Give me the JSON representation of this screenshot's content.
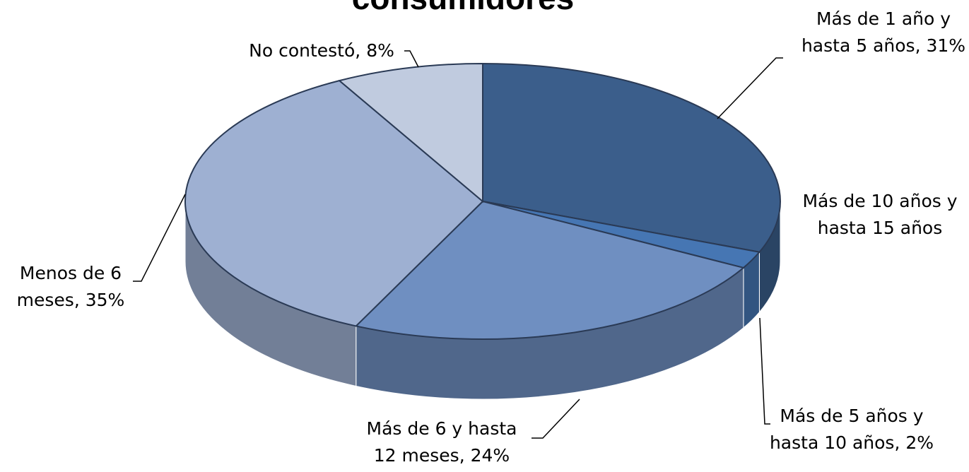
{
  "chart_data": {
    "type": "pie",
    "title": "consumidores",
    "categories": [
      "Más de 1 año y hasta 5 años",
      "Más de 10 años y hasta 15 años",
      "Más de 5 años y hasta 10 años",
      "Más de 6 y hasta 12 meses",
      "Menos de 6 meses",
      "No contestó"
    ],
    "values": [
      31,
      0,
      2,
      24,
      35,
      8
    ],
    "value_labels": [
      "31%",
      null,
      "2%",
      "24%",
      "35%",
      "8%"
    ],
    "colors": [
      "#3b5e8b",
      "#2c4668",
      "#4676b3",
      "#6f8fc1",
      "#9eb0d2",
      "#c0cbdf"
    ]
  }
}
